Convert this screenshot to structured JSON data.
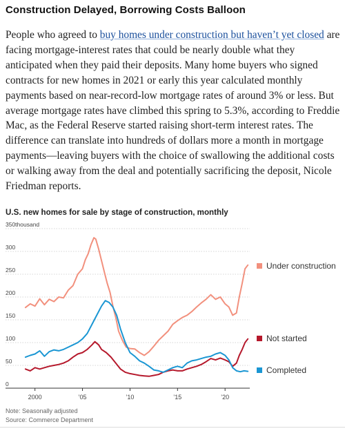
{
  "article": {
    "headline": "Construction Delayed, Borrowing Costs Balloon",
    "link_text": "buy homes under construction but haven’t yet closed",
    "text_before": "People who agreed to ",
    "text_after": " are facing mortgage-interest rates that could be nearly double what they anticipated when they paid their deposits. Many home buyers who signed contracts for new homes in 2021 or early this year calculated monthly payments based on near-record-low mortgage rates of around 3% or less. But average mortgage rates have climbed this spring to 5.3%, according to Freddie Mac, as the Federal Reserve started raising short-term interest rates. The difference can translate into hundreds of dollars more a month in mortgage payments—leaving buyers with the choice of swallowing the additional costs or walking away from the deal and potentially sacrificing the deposit, Nicole Friedman reports."
  },
  "chart_data": {
    "type": "line",
    "title": "U.S. new homes for sale by stage of construction, monthly",
    "y_unit_label": "thousand",
    "ylim": [
      0,
      350
    ],
    "xlim": [
      1998.5,
      2022.6
    ],
    "y_ticks": [
      0,
      50,
      100,
      150,
      200,
      250,
      300,
      350
    ],
    "x_ticks": [
      {
        "value": 2000,
        "label": "2000"
      },
      {
        "value": 2005,
        "label": "’05"
      },
      {
        "value": 2010,
        "label": "’10"
      },
      {
        "value": 2015,
        "label": "’15"
      },
      {
        "value": 2020,
        "label": "’20"
      }
    ],
    "grid": true,
    "legend": "right, at line ends",
    "series": [
      {
        "name": "Under construction",
        "color": "#f2907d",
        "points": [
          [
            1999.0,
            177
          ],
          [
            1999.5,
            185
          ],
          [
            2000.0,
            180
          ],
          [
            2000.5,
            196
          ],
          [
            2001.0,
            183
          ],
          [
            2001.5,
            195
          ],
          [
            2002.0,
            190
          ],
          [
            2002.5,
            200
          ],
          [
            2003.0,
            198
          ],
          [
            2003.5,
            215
          ],
          [
            2004.0,
            225
          ],
          [
            2004.5,
            250
          ],
          [
            2005.0,
            262
          ],
          [
            2005.3,
            282
          ],
          [
            2005.6,
            295
          ],
          [
            2005.9,
            315
          ],
          [
            2006.2,
            330
          ],
          [
            2006.4,
            327
          ],
          [
            2006.7,
            305
          ],
          [
            2007.0,
            280
          ],
          [
            2007.3,
            255
          ],
          [
            2007.6,
            230
          ],
          [
            2007.9,
            210
          ],
          [
            2008.2,
            180
          ],
          [
            2008.5,
            155
          ],
          [
            2008.8,
            125
          ],
          [
            2009.2,
            105
          ],
          [
            2009.6,
            90
          ],
          [
            2010.0,
            87
          ],
          [
            2010.5,
            86
          ],
          [
            2011.0,
            78
          ],
          [
            2011.5,
            72
          ],
          [
            2012.0,
            80
          ],
          [
            2012.5,
            92
          ],
          [
            2013.0,
            105
          ],
          [
            2013.5,
            115
          ],
          [
            2014.0,
            125
          ],
          [
            2014.5,
            140
          ],
          [
            2015.0,
            148
          ],
          [
            2015.5,
            155
          ],
          [
            2016.0,
            160
          ],
          [
            2016.5,
            168
          ],
          [
            2017.0,
            178
          ],
          [
            2017.5,
            187
          ],
          [
            2018.0,
            195
          ],
          [
            2018.5,
            205
          ],
          [
            2019.0,
            195
          ],
          [
            2019.5,
            200
          ],
          [
            2020.0,
            185
          ],
          [
            2020.4,
            178
          ],
          [
            2020.8,
            160
          ],
          [
            2021.2,
            165
          ],
          [
            2021.5,
            200
          ],
          [
            2021.8,
            230
          ],
          [
            2022.1,
            262
          ],
          [
            2022.4,
            270
          ]
        ]
      },
      {
        "name": "Not started",
        "color": "#b5182b",
        "points": [
          [
            1999.0,
            42
          ],
          [
            1999.5,
            38
          ],
          [
            2000.0,
            45
          ],
          [
            2000.5,
            42
          ],
          [
            2001.0,
            45
          ],
          [
            2001.5,
            48
          ],
          [
            2002.0,
            50
          ],
          [
            2002.5,
            52
          ],
          [
            2003.0,
            55
          ],
          [
            2003.5,
            60
          ],
          [
            2004.0,
            68
          ],
          [
            2004.5,
            75
          ],
          [
            2005.0,
            78
          ],
          [
            2005.5,
            85
          ],
          [
            2006.0,
            95
          ],
          [
            2006.3,
            102
          ],
          [
            2006.7,
            95
          ],
          [
            2007.0,
            85
          ],
          [
            2007.5,
            78
          ],
          [
            2008.0,
            68
          ],
          [
            2008.5,
            55
          ],
          [
            2009.0,
            42
          ],
          [
            2009.5,
            35
          ],
          [
            2010.0,
            32
          ],
          [
            2010.5,
            30
          ],
          [
            2011.0,
            28
          ],
          [
            2011.5,
            27
          ],
          [
            2012.0,
            26
          ],
          [
            2012.5,
            28
          ],
          [
            2013.0,
            30
          ],
          [
            2013.5,
            35
          ],
          [
            2014.0,
            38
          ],
          [
            2014.5,
            40
          ],
          [
            2015.0,
            38
          ],
          [
            2015.5,
            38
          ],
          [
            2016.0,
            42
          ],
          [
            2016.5,
            45
          ],
          [
            2017.0,
            48
          ],
          [
            2017.5,
            52
          ],
          [
            2018.0,
            58
          ],
          [
            2018.5,
            65
          ],
          [
            2019.0,
            62
          ],
          [
            2019.5,
            66
          ],
          [
            2020.0,
            62
          ],
          [
            2020.4,
            58
          ],
          [
            2020.8,
            48
          ],
          [
            2021.2,
            55
          ],
          [
            2021.5,
            72
          ],
          [
            2021.8,
            85
          ],
          [
            2022.1,
            100
          ],
          [
            2022.4,
            108
          ]
        ]
      },
      {
        "name": "Completed",
        "color": "#1a96d3",
        "points": [
          [
            1999.0,
            68
          ],
          [
            1999.5,
            72
          ],
          [
            2000.0,
            75
          ],
          [
            2000.5,
            82
          ],
          [
            2001.0,
            70
          ],
          [
            2001.5,
            80
          ],
          [
            2002.0,
            84
          ],
          [
            2002.5,
            82
          ],
          [
            2003.0,
            85
          ],
          [
            2003.5,
            90
          ],
          [
            2004.0,
            95
          ],
          [
            2004.5,
            100
          ],
          [
            2005.0,
            108
          ],
          [
            2005.5,
            120
          ],
          [
            2006.0,
            140
          ],
          [
            2006.5,
            160
          ],
          [
            2007.0,
            180
          ],
          [
            2007.4,
            192
          ],
          [
            2007.8,
            188
          ],
          [
            2008.2,
            178
          ],
          [
            2008.6,
            160
          ],
          [
            2009.0,
            130
          ],
          [
            2009.5,
            100
          ],
          [
            2010.0,
            78
          ],
          [
            2010.5,
            70
          ],
          [
            2011.0,
            60
          ],
          [
            2011.5,
            55
          ],
          [
            2012.0,
            48
          ],
          [
            2012.5,
            40
          ],
          [
            2013.0,
            38
          ],
          [
            2013.5,
            35
          ],
          [
            2014.0,
            40
          ],
          [
            2014.5,
            45
          ],
          [
            2015.0,
            48
          ],
          [
            2015.5,
            45
          ],
          [
            2016.0,
            55
          ],
          [
            2016.5,
            60
          ],
          [
            2017.0,
            62
          ],
          [
            2017.5,
            65
          ],
          [
            2018.0,
            68
          ],
          [
            2018.5,
            70
          ],
          [
            2019.0,
            75
          ],
          [
            2019.5,
            78
          ],
          [
            2020.0,
            72
          ],
          [
            2020.4,
            62
          ],
          [
            2020.8,
            45
          ],
          [
            2021.2,
            38
          ],
          [
            2021.6,
            36
          ],
          [
            2022.0,
            38
          ],
          [
            2022.4,
            37
          ]
        ]
      }
    ]
  },
  "notes": {
    "adjustment": "Note: Seasonally adjusted",
    "source": "Source: Commerce Department"
  }
}
